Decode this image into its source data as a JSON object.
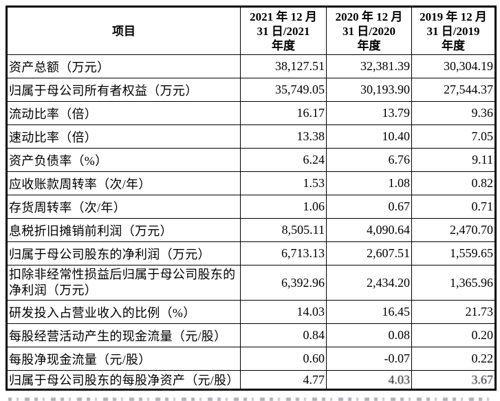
{
  "table": {
    "header": {
      "item_label": "项目",
      "periods": [
        "2021 年 12 月\n31 日/2021\n年度",
        "2020 年 12 月\n31 日/2020\n年度",
        "2019 年 12 月\n31 日/2019\n年度"
      ]
    },
    "rows": [
      {
        "label": "资产总额（万元）",
        "values": [
          "38,127.51",
          "32,381.39",
          "30,304.19"
        ]
      },
      {
        "label": "归属于母公司所有者权益（万元）",
        "values": [
          "35,749.05",
          "30,193.90",
          "27,544.37"
        ]
      },
      {
        "label": "流动比率（倍）",
        "values": [
          "16.17",
          "13.79",
          "9.36"
        ]
      },
      {
        "label": "速动比率（倍）",
        "values": [
          "13.38",
          "10.40",
          "7.05"
        ]
      },
      {
        "label": "资产负债率（%）",
        "values": [
          "6.24",
          "6.76",
          "9.11"
        ]
      },
      {
        "label": "应收账款周转率（次/年）",
        "values": [
          "1.53",
          "1.08",
          "0.82"
        ]
      },
      {
        "label": "存货周转率（次/年）",
        "values": [
          "1.06",
          "0.67",
          "0.71"
        ]
      },
      {
        "label": "息税折旧摊销前利润（万元）",
        "values": [
          "8,505.11",
          "4,090.64",
          "2,470.70"
        ]
      },
      {
        "label": "归属于母公司股东的净利润（万元）",
        "values": [
          "6,713.13",
          "2,607.51",
          "1,559.65"
        ]
      },
      {
        "label": "扣除非经常性损益后归属于母公司股东的净利润（万元）",
        "values": [
          "6,392.96",
          "2,434.20",
          "1,365.96"
        ],
        "two_line": true
      },
      {
        "label": "研发投入占营业收入的比例（%）",
        "values": [
          "14.03",
          "16.45",
          "21.73"
        ]
      },
      {
        "label": "每股经营活动产生的现金流量（元/股）",
        "values": [
          "0.84",
          "0.08",
          "0.20"
        ]
      },
      {
        "label": "每股净现金流量（元/股）",
        "values": [
          "0.60",
          "-0.07",
          "0.22"
        ]
      },
      {
        "label": "归属于母公司股东的每股净资产（元/股）",
        "values": [
          "4.77",
          "4.03",
          "3.67"
        ],
        "degraded": [
          1,
          2
        ]
      }
    ]
  },
  "chart_data": {
    "type": "table",
    "title": "主要财务指标",
    "columns": [
      "项目",
      "2021 年 12 月 31 日/2021 年度",
      "2020 年 12 月 31 日/2020 年度",
      "2019 年 12 月 31 日/2019 年度"
    ],
    "rows": [
      [
        "资产总额（万元）",
        38127.51,
        32381.39,
        30304.19
      ],
      [
        "归属于母公司所有者权益（万元）",
        35749.05,
        30193.9,
        27544.37
      ],
      [
        "流动比率（倍）",
        16.17,
        13.79,
        9.36
      ],
      [
        "速动比率（倍）",
        13.38,
        10.4,
        7.05
      ],
      [
        "资产负债率（%）",
        6.24,
        6.76,
        9.11
      ],
      [
        "应收账款周转率（次/年）",
        1.53,
        1.08,
        0.82
      ],
      [
        "存货周转率（次/年）",
        1.06,
        0.67,
        0.71
      ],
      [
        "息税折旧摊销前利润（万元）",
        8505.11,
        4090.64,
        2470.7
      ],
      [
        "归属于母公司股东的净利润（万元）",
        6713.13,
        2607.51,
        1559.65
      ],
      [
        "扣除非经常性损益后归属于母公司股东的净利润（万元）",
        6392.96,
        2434.2,
        1365.96
      ],
      [
        "研发投入占营业收入的比例（%）",
        14.03,
        16.45,
        21.73
      ],
      [
        "每股经营活动产生的现金流量（元/股）",
        0.84,
        0.08,
        0.2
      ],
      [
        "每股净现金流量（元/股）",
        0.6,
        -0.07,
        0.22
      ],
      [
        "归属于母公司股东的每股净资产（元/股）",
        4.77,
        4.03,
        3.67
      ]
    ]
  },
  "colors": {
    "border": "#000000",
    "text": "#000000",
    "background": "#ffffff"
  }
}
